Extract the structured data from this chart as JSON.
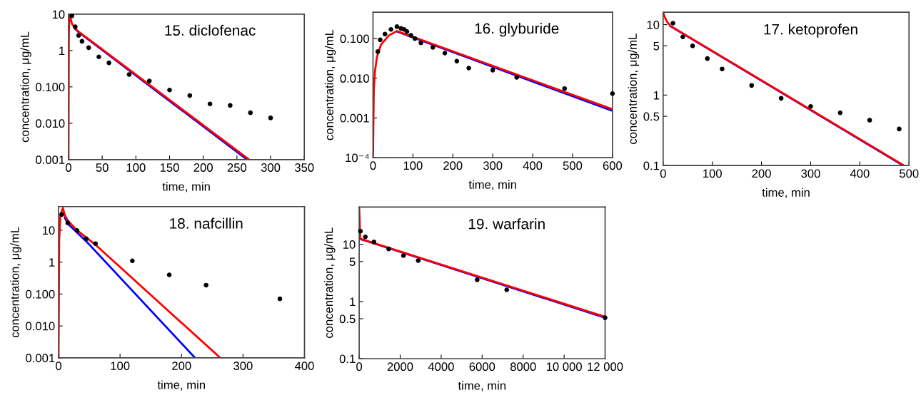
{
  "chart_data": [
    {
      "type": "scatter",
      "title": "15. diclofenac",
      "xlabel": "time, min",
      "ylabel": "concentration, μg/mL",
      "log": "y",
      "grid": false,
      "xlim": [
        0,
        350
      ],
      "xticks": [
        0,
        50,
        100,
        150,
        200,
        250,
        300,
        350
      ],
      "ylim": [
        0.001,
        10
      ],
      "yticks": [
        {
          "value": 0.001,
          "label": "0.001"
        },
        {
          "value": 0.01,
          "label": "0.010"
        },
        {
          "value": 0.1,
          "label": "0.100"
        },
        1,
        10
      ],
      "series": [
        {
          "type": "line",
          "color": "#0000ff",
          "x": [
            10,
            15,
            265
          ],
          "values": [
            3.9,
            3.2,
            0.001
          ]
        },
        {
          "type": "line",
          "color": "#ff0000",
          "x": [
            0,
            0.5,
            1.5,
            5,
            10,
            15,
            268
          ],
          "values": [
            0.001,
            3,
            10,
            5.5,
            4,
            3.3,
            0.001
          ]
        },
        {
          "color": "#000000",
          "marker": "circle",
          "x": [
            5,
            10,
            15,
            20,
            30,
            45,
            60,
            90,
            120,
            150,
            180,
            210,
            240,
            270,
            300
          ],
          "values": [
            9,
            4.5,
            2.6,
            1.8,
            1.2,
            0.67,
            0.46,
            0.22,
            0.145,
            0.082,
            0.058,
            0.034,
            0.031,
            0.0195,
            0.014
          ]
        }
      ]
    },
    {
      "type": "scatter",
      "title": "16. glyburide",
      "xlabel": "time, min",
      "ylabel": "concentration, μg/mL",
      "log": "y",
      "grid": false,
      "xlim": [
        0,
        600
      ],
      "xticks": [
        0,
        100,
        200,
        300,
        400,
        500,
        600
      ],
      "ylim": [
        0.0001,
        0.46
      ],
      "yticks": [
        {
          "value": 0.0001,
          "label": "10⁻⁴"
        },
        {
          "value": 0.001,
          "label": "0.001"
        },
        {
          "value": 0.01,
          "label": "0.010"
        },
        {
          "value": 0.1,
          "label": "0.100"
        }
      ],
      "series": [
        {
          "type": "line",
          "color": "#0000ff",
          "x": [
            60,
            600
          ],
          "values": [
            0.15,
            0.0015
          ]
        },
        {
          "type": "line",
          "color": "#ff0000",
          "x": [
            0,
            2,
            5,
            10,
            20,
            40,
            60,
            600
          ],
          "values": [
            0.0001,
            0.005,
            0.015,
            0.035,
            0.07,
            0.12,
            0.155,
            0.00165
          ]
        },
        {
          "color": "#000000",
          "marker": "circle",
          "x": [
            12,
            18,
            30,
            45,
            60,
            70,
            78,
            85,
            95,
            105,
            120,
            150,
            180,
            210,
            240,
            300,
            360,
            480,
            600
          ],
          "values": [
            0.047,
            0.093,
            0.13,
            0.17,
            0.2,
            0.18,
            0.17,
            0.15,
            0.12,
            0.1,
            0.078,
            0.06,
            0.043,
            0.027,
            0.018,
            0.016,
            0.0105,
            0.0055,
            0.0041
          ]
        }
      ]
    },
    {
      "type": "scatter",
      "title": "17. ketoprofen",
      "xlabel": "time, min",
      "ylabel": "concentration, μg/mL",
      "log": "y",
      "grid": false,
      "xlim": [
        0,
        500
      ],
      "xticks": [
        0,
        100,
        200,
        300,
        400,
        500
      ],
      "ylim": [
        0.1,
        15
      ],
      "yticks": [
        0.1,
        0.5,
        1,
        5,
        10
      ],
      "series": [
        {
          "type": "line",
          "color": "#0000ff",
          "x": [
            15,
            488
          ],
          "values": [
            9.5,
            0.1
          ]
        },
        {
          "type": "line",
          "color": "#ff0000",
          "x": [
            0,
            3,
            8,
            15,
            490
          ],
          "values": [
            15,
            13,
            11,
            9.6,
            0.1
          ]
        },
        {
          "color": "#000000",
          "marker": "circle",
          "x": [
            20,
            40,
            60,
            90,
            120,
            180,
            240,
            300,
            360,
            420,
            480
          ],
          "values": [
            10.5,
            6.7,
            5,
            3.3,
            2.35,
            1.37,
            0.9,
            0.69,
            0.56,
            0.44,
            0.33
          ]
        }
      ]
    },
    {
      "type": "scatter",
      "title": "18. nafcillin",
      "xlabel": "time, min",
      "ylabel": "concentration, μg/mL",
      "log": "y",
      "grid": false,
      "xlim": [
        0,
        400
      ],
      "xticks": [
        0,
        100,
        200,
        300,
        400
      ],
      "ylim": [
        0.001,
        55
      ],
      "yticks": [
        {
          "value": 0.001,
          "label": "0.001"
        },
        {
          "value": 0.01,
          "label": "0.010"
        },
        {
          "value": 0.1,
          "label": "0.100"
        },
        1,
        10
      ],
      "series": [
        {
          "type": "line",
          "color": "#0000ff",
          "x": [
            10,
            15,
            30,
            45,
            222
          ],
          "values": [
            25,
            16,
            8.5,
            4.5,
            0.001
          ]
        },
        {
          "type": "line",
          "color": "#ff0000",
          "x": [
            0,
            1,
            3,
            7,
            10,
            15,
            30,
            60,
            263
          ],
          "values": [
            0.001,
            5,
            30,
            50,
            30,
            20,
            10,
            3.5,
            0.001
          ]
        },
        {
          "color": "#000000",
          "marker": "circle",
          "x": [
            5,
            15,
            30,
            45,
            60,
            120,
            180,
            240,
            360
          ],
          "values": [
            31,
            17,
            9.8,
            5.4,
            3.8,
            1.1,
            0.4,
            0.19,
            0.071
          ]
        }
      ]
    },
    {
      "type": "scatter",
      "title": "19. warfarin",
      "xlabel": "time, min",
      "ylabel": "concentration, μg/mL",
      "log": "y",
      "grid": false,
      "xlim": [
        0,
        12000
      ],
      "xticks": [
        0,
        2000,
        4000,
        6000,
        8000,
        {
          "value": 10000,
          "label": "10 000"
        },
        {
          "value": 12000,
          "label": "12 000"
        }
      ],
      "ylim": [
        0.1,
        45
      ],
      "yticks": [
        0.1,
        0.5,
        1,
        5,
        10
      ],
      "series": [
        {
          "type": "line",
          "color": "#0000ff",
          "x": [
            50,
            12000
          ],
          "values": [
            12.4,
            0.52
          ]
        },
        {
          "type": "line",
          "color": "#ff0000",
          "x": [
            0,
            50,
            12000
          ],
          "values": [
            45,
            12.5,
            0.54
          ]
        },
        {
          "color": "#000000",
          "marker": "circle",
          "x": [
            60,
            300,
            720,
            1440,
            2160,
            2880,
            5760,
            7200,
            12000
          ],
          "values": [
            17,
            13.5,
            11,
            8.3,
            6.35,
            5.2,
            2.4,
            1.6,
            0.52
          ]
        }
      ]
    }
  ]
}
